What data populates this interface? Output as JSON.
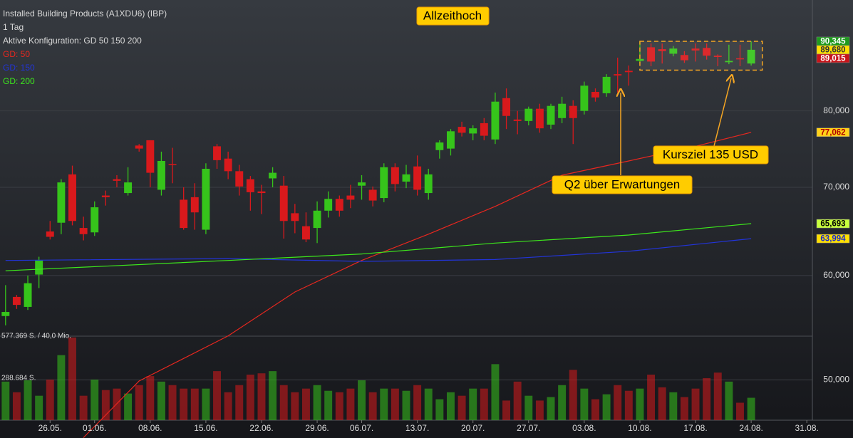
{
  "chart_data": {
    "type": "candlestick",
    "title": "Installed Building Products (A1XDU6) (IBP)",
    "interval": "1 Tag",
    "config": "Aktive Konfiguration: GD 50 150 200",
    "up_color": "#36c41b",
    "down_color": "#d9191c",
    "log_y": true,
    "grid": true,
    "xlim": [
      -0.5,
      72.5
    ],
    "xticks": [
      {
        "value": 4,
        "label": "26.05."
      },
      {
        "value": 8,
        "label": "01.06."
      },
      {
        "value": 13,
        "label": "08.06."
      },
      {
        "value": 18,
        "label": "15.06."
      },
      {
        "value": 23,
        "label": "22.06."
      },
      {
        "value": 28,
        "label": "29.06."
      },
      {
        "value": 32,
        "label": "06.07."
      },
      {
        "value": 37,
        "label": "13.07."
      },
      {
        "value": 42,
        "label": "20.07."
      },
      {
        "value": 47,
        "label": "27.07."
      },
      {
        "value": 52,
        "label": "03.08."
      },
      {
        "value": 57,
        "label": "10.08."
      },
      {
        "value": 62,
        "label": "17.08."
      },
      {
        "value": 67,
        "label": "24.08."
      },
      {
        "value": 72,
        "label": "31.08."
      }
    ],
    "ylim": [
      46.6,
      97.1
    ],
    "yticks": [
      {
        "value": 50,
        "label": "50,000"
      },
      {
        "value": 60,
        "label": "60,000"
      },
      {
        "value": 70,
        "label": "70,000"
      },
      {
        "value": 80,
        "label": "80,000"
      }
    ],
    "y2lim": [
      0,
      577369
    ],
    "y2ticks": [
      {
        "value": 577369,
        "label": "577.369 S. / 40,0 Mio."
      },
      {
        "value": 288684,
        "label": "288.684 S."
      }
    ],
    "open": [
      55.9,
      57.8,
      56.8,
      60.1,
      64.8,
      65.8,
      71.6,
      65.2,
      64.7,
      69,
      71,
      69.3,
      75.3,
      76,
      69.7,
      72.9,
      68.5,
      68.8,
      65,
      75.2,
      73.6,
      72,
      71,
      69.5,
      71.1,
      70.2,
      66.9,
      65.4,
      65.2,
      67.2,
      68.6,
      69,
      70.2,
      69.7,
      68.7,
      72.5,
      70.7,
      72.6,
      69.3,
      74.7,
      74.9,
      77.8,
      76.9,
      78.3,
      76.1,
      81.8,
      78.8,
      78.6,
      80.3,
      78.1,
      79,
      80.7,
      80,
      82.7,
      82.5,
      85.3,
      85.8,
      87.3,
      89.4,
      89.1,
      88.4,
      88.2,
      89.2,
      89.3,
      88.1,
      87.1,
      87.7,
      86.9
    ],
    "high": [
      59,
      58,
      60,
      62,
      66,
      71,
      72.7,
      66.5,
      68.3,
      69.6,
      71.5,
      72.5,
      75.5,
      76,
      74.5,
      75,
      70,
      70.5,
      73,
      75.5,
      74.5,
      72.8,
      71.4,
      70.3,
      72.5,
      71.4,
      68,
      67,
      68.3,
      69.5,
      69,
      70.3,
      71.5,
      70.1,
      73,
      73,
      72.8,
      74,
      72.3,
      76,
      77.5,
      78.5,
      78,
      79,
      82.6,
      83.2,
      80,
      80.6,
      81,
      81,
      82,
      81.5,
      84.2,
      83.2,
      85.3,
      87.8,
      86.6,
      90.3,
      90,
      90,
      89.6,
      88.8,
      90,
      90,
      88.3,
      89.8,
      89.8,
      90.345
    ],
    "low": [
      55,
      56.6,
      56.5,
      58.7,
      63.9,
      64.5,
      65.5,
      63.8,
      64.3,
      67.8,
      70,
      69,
      74.5,
      70,
      69,
      70.5,
      65,
      65,
      64.5,
      72.3,
      71,
      69,
      67.2,
      66.8,
      70,
      64,
      64.6,
      63.6,
      63.5,
      66.4,
      66.5,
      67.5,
      68.5,
      67.7,
      68.2,
      69.5,
      69.9,
      69,
      68.5,
      73.6,
      74,
      76.5,
      76,
      76,
      75.5,
      77.5,
      76.8,
      78,
      77,
      77.5,
      78.3,
      75.5,
      79.5,
      81.3,
      82,
      82.6,
      83.6,
      87,
      86.5,
      86.9,
      88,
      87,
      87.2,
      87.5,
      86.5,
      86.8,
      86.5,
      86.6
    ],
    "close": [
      56.3,
      57.0,
      59.2,
      61.6,
      64.2,
      70.6,
      66.0,
      64.5,
      67.6,
      68.8,
      70.8,
      70.6,
      74.9,
      71.8,
      73.3,
      72.8,
      65.2,
      67,
      72.3,
      73.4,
      72,
      70.1,
      69.4,
      69.3,
      71.8,
      66,
      66,
      63.9,
      67.2,
      68.6,
      67.2,
      68.5,
      70.6,
      68.4,
      72.5,
      70.4,
      71.6,
      69.7,
      71.6,
      75.7,
      77.2,
      77,
      77.6,
      76.6,
      81.3,
      79.3,
      78.6,
      80.3,
      77.6,
      80.7,
      81,
      79,
      83.6,
      81.9,
      84.9,
      85.1,
      85.6,
      87.6,
      87.2,
      88.8,
      89.2,
      87.4,
      88.9,
      88.1,
      87.9,
      87.3,
      87.6,
      89.015
    ],
    "volume": [
      265000,
      192000,
      274000,
      168000,
      279000,
      447000,
      568000,
      168000,
      279000,
      207000,
      217000,
      183000,
      241000,
      303000,
      265000,
      241000,
      217000,
      217000,
      217000,
      337000,
      192000,
      241000,
      313000,
      322000,
      337000,
      241000,
      192000,
      217000,
      241000,
      202000,
      192000,
      217000,
      274000,
      192000,
      217000,
      217000,
      202000,
      241000,
      217000,
      144000,
      192000,
      168000,
      217000,
      217000,
      385000,
      135000,
      265000,
      168000,
      135000,
      159000,
      241000,
      346000,
      217000,
      144000,
      178000,
      241000,
      202000,
      217000,
      313000,
      226000,
      192000,
      159000,
      217000,
      289000,
      327000,
      265000,
      120000,
      154000
    ],
    "series": [
      {
        "name": "GD: 50",
        "color": "#e8271f",
        "x": [
          7,
          12,
          20,
          26,
          32,
          38,
          44,
          50,
          56,
          62,
          67
        ],
        "values": [
          45.2,
          49.9,
          54,
          58.3,
          61.6,
          64.5,
          67.7,
          71.5,
          73.3,
          75.2,
          77.062
        ]
      },
      {
        "name": "GD: 150",
        "color": "#2234d8",
        "x": [
          0,
          20,
          32,
          44,
          56,
          67
        ],
        "values": [
          61.6,
          61.8,
          61.5,
          61.7,
          62.6,
          63.994
        ]
      },
      {
        "name": "GD: 200",
        "color": "#3de81c",
        "x": [
          0,
          20,
          32,
          44,
          56,
          67
        ],
        "values": [
          60.5,
          61.6,
          62.3,
          63.5,
          64.4,
          65.693
        ]
      }
    ],
    "price_labels": [
      {
        "value": 90.345,
        "label": "90,345",
        "color": "#1f9a1f",
        "text_color": "#ffffff"
      },
      {
        "value": 89.68,
        "label": "89,680",
        "color": "#ffe000",
        "text_color": "#333333"
      },
      {
        "value": 89.015,
        "label": "89,015",
        "color": "#c8141a",
        "text_color": "#ffffff"
      },
      {
        "value": 77.062,
        "label": "77,062",
        "color": "#ffd21a",
        "text_color": "#b00000"
      },
      {
        "value": 65.693,
        "label": "65,693",
        "color": "#c8ff3c",
        "text_color": "#000000"
      },
      {
        "value": 63.994,
        "label": "63,994",
        "color": "#ffe000",
        "text_color": "#1a2bd0"
      }
    ],
    "highlight_box": {
      "x": [
        57,
        68
      ],
      "y": [
        85.9,
        90.345
      ]
    },
    "annotations": [
      "Allzeithoch",
      "Q2 über Erwartungen",
      "Kursziel 135 USD"
    ]
  }
}
